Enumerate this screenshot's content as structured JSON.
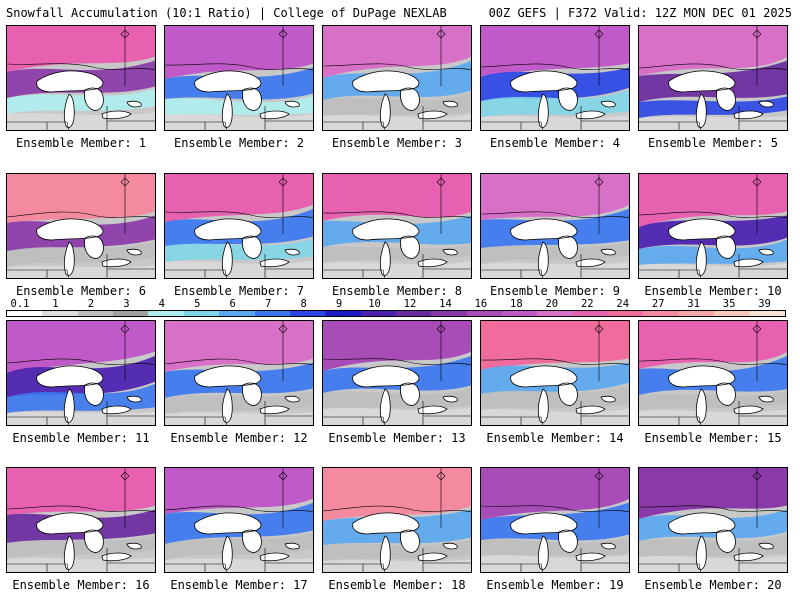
{
  "header": {
    "left": "Snowfall Accumulation (10:1 Ratio) | College of DuPage NEXLAB",
    "right": "00Z GEFS | F372 Valid: 12Z MON DEC 01 2025"
  },
  "legend": {
    "labels": [
      "0.1",
      "1",
      "2",
      "3",
      "4",
      "5",
      "6",
      "7",
      "8",
      "9",
      "10",
      "12",
      "14",
      "16",
      "18",
      "20",
      "22",
      "24",
      "27",
      "31",
      "35",
      "39"
    ],
    "colors": [
      "#ffffff",
      "#dcdcdc",
      "#bebebe",
      "#a0a0a0",
      "#aeeef0",
      "#7fd6e8",
      "#5aa8f0",
      "#3b78f0",
      "#2a46e6",
      "#1c1cc8",
      "#4a20b0",
      "#6a2aa0",
      "#8a3aa8",
      "#a84cb8",
      "#c05ac8",
      "#d870c8",
      "#e860b0",
      "#f06c9c",
      "#f48aa0",
      "#f6a8a8",
      "#f8c8b8",
      "#fbe2d6"
    ]
  },
  "panels": [
    {
      "label": "Ensemble Member: 1",
      "snow_colors": [
        "#e860b0",
        "#8a3aa8",
        "#aeeef0"
      ]
    },
    {
      "label": "Ensemble Member: 2",
      "snow_colors": [
        "#c05ac8",
        "#3b78f0",
        "#aeeef0"
      ]
    },
    {
      "label": "Ensemble Member: 3",
      "snow_colors": [
        "#d870c8",
        "#5aa8f0",
        "#bebebe"
      ]
    },
    {
      "label": "Ensemble Member: 4",
      "snow_colors": [
        "#c05ac8",
        "#2a46e6",
        "#7fd6e8"
      ]
    },
    {
      "label": "Ensemble Member: 5",
      "snow_colors": [
        "#d870c8",
        "#6a2aa0",
        "#2a46e6"
      ]
    },
    {
      "label": "Ensemble Member: 6",
      "snow_colors": [
        "#f48aa0",
        "#8a3aa8",
        "#bebebe"
      ]
    },
    {
      "label": "Ensemble Member: 7",
      "snow_colors": [
        "#e860b0",
        "#3b78f0",
        "#7fd6e8"
      ]
    },
    {
      "label": "Ensemble Member: 8",
      "snow_colors": [
        "#e860b0",
        "#5aa8f0",
        "#bebebe"
      ]
    },
    {
      "label": "Ensemble Member: 9",
      "snow_colors": [
        "#d870c8",
        "#3b78f0",
        "#bebebe"
      ]
    },
    {
      "label": "Ensemble Member: 10",
      "snow_colors": [
        "#e860b0",
        "#4a20b0",
        "#5aa8f0"
      ]
    },
    {
      "label": "Ensemble Member: 11",
      "snow_colors": [
        "#c05ac8",
        "#4a20b0",
        "#3b78f0"
      ]
    },
    {
      "label": "Ensemble Member: 12",
      "snow_colors": [
        "#d870c8",
        "#3b78f0",
        "#bebebe"
      ]
    },
    {
      "label": "Ensemble Member: 13",
      "snow_colors": [
        "#a84cb8",
        "#3b78f0",
        "#bebebe"
      ]
    },
    {
      "label": "Ensemble Member: 14",
      "snow_colors": [
        "#f06c9c",
        "#5aa8f0",
        "#bebebe"
      ]
    },
    {
      "label": "Ensemble Member: 15",
      "snow_colors": [
        "#e860b0",
        "#3b78f0",
        "#bebebe"
      ]
    },
    {
      "label": "Ensemble Member: 16",
      "snow_colors": [
        "#e860b0",
        "#6a2aa0",
        "#bebebe"
      ]
    },
    {
      "label": "Ensemble Member: 17",
      "snow_colors": [
        "#c05ac8",
        "#3b78f0",
        "#bebebe"
      ]
    },
    {
      "label": "Ensemble Member: 18",
      "snow_colors": [
        "#f48aa0",
        "#5aa8f0",
        "#bebebe"
      ]
    },
    {
      "label": "Ensemble Member: 19",
      "snow_colors": [
        "#a84cb8",
        "#3b78f0",
        "#bebebe"
      ]
    },
    {
      "label": "Ensemble Member: 20",
      "snow_colors": [
        "#8a3aa8",
        "#5aa8f0",
        "#bebebe"
      ]
    }
  ]
}
